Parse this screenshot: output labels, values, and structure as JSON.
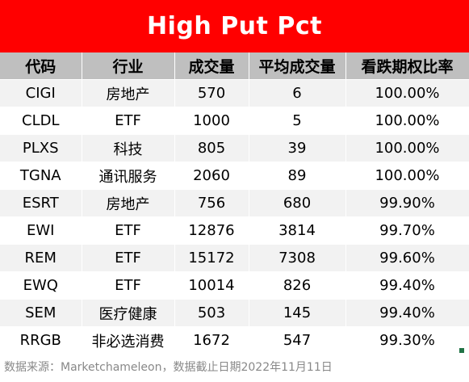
{
  "title": "High Put Pct",
  "table": {
    "headers": [
      "代码",
      "行业",
      "成交量",
      "平均成交量",
      "看跌期权比率"
    ],
    "rows": [
      {
        "ticker": "CIGI",
        "sector": "房地产",
        "volume": "570",
        "avg_volume": "6",
        "put_pct": "100.00%"
      },
      {
        "ticker": "CLDL",
        "sector": "ETF",
        "volume": "1000",
        "avg_volume": "5",
        "put_pct": "100.00%"
      },
      {
        "ticker": "PLXS",
        "sector": "科技",
        "volume": "805",
        "avg_volume": "39",
        "put_pct": "100.00%"
      },
      {
        "ticker": "TGNA",
        "sector": "通讯服务",
        "volume": "2060",
        "avg_volume": "89",
        "put_pct": "100.00%"
      },
      {
        "ticker": "ESRT",
        "sector": "房地产",
        "volume": "756",
        "avg_volume": "680",
        "put_pct": "99.90%"
      },
      {
        "ticker": "EWI",
        "sector": "ETF",
        "volume": "12876",
        "avg_volume": "3814",
        "put_pct": "99.70%"
      },
      {
        "ticker": "REM",
        "sector": "ETF",
        "volume": "15172",
        "avg_volume": "7308",
        "put_pct": "99.60%"
      },
      {
        "ticker": "EWQ",
        "sector": "ETF",
        "volume": "10014",
        "avg_volume": "826",
        "put_pct": "99.40%"
      },
      {
        "ticker": "SEM",
        "sector": "医疗健康",
        "volume": "503",
        "avg_volume": "145",
        "put_pct": "99.40%"
      },
      {
        "ticker": "RRGB",
        "sector": "非必选消费",
        "volume": "1672",
        "avg_volume": "547",
        "put_pct": "99.30%"
      }
    ]
  },
  "footnote": "数据来源：Marketchameleon，数据截止日期2022年11月11日",
  "colors": {
    "title_bg": "#ff0000",
    "header_bg": "#bfbfbf",
    "band_light": "#f2f2f2",
    "band_white": "#ffffff",
    "footnote_text": "#888888"
  }
}
